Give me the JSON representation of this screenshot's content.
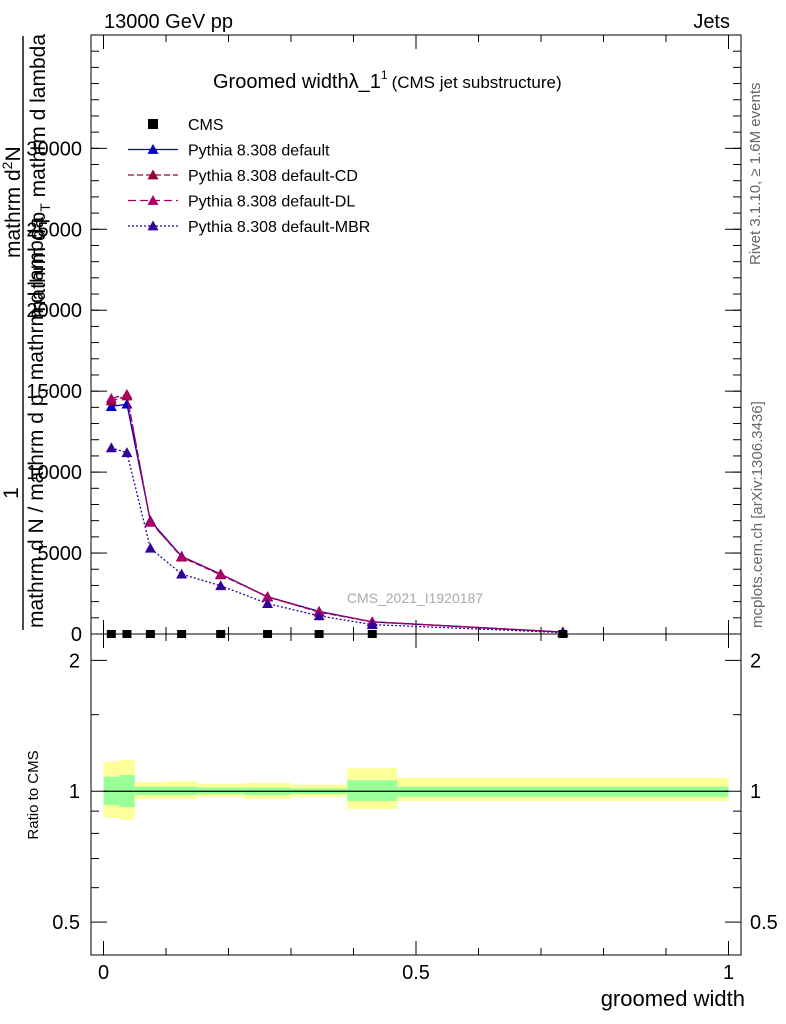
{
  "header": {
    "left": "13000 GeV pp",
    "right": "Jets"
  },
  "title": {
    "main": "Groomed widthλ_1",
    "superscript": "1",
    "sub": "(CMS jet substructure)"
  },
  "side_labels": {
    "rivet": "Rivet 3.1.10, ≥ 1.6M events",
    "mcplots": "mcplots.cern.ch [arXiv:1306.3436]"
  },
  "watermark": "CMS_2021_I1920187",
  "ylabel_top": {
    "one": "1",
    "line1": "mathrm d",
    "line1_sup": "2",
    "line1_end": "N",
    "line2": "mathrm d p",
    "line2_sub": "T",
    "line2_end": " mathrm d lambda",
    "denominator": "mathrm d N / mathrm d p",
    "denominator_sub": "T",
    "denominator_end": " mathrm d lambda"
  },
  "chart_data": {
    "type": "line",
    "xlabel": "groomed width",
    "ylabel_ratio": "Ratio to CMS",
    "xlim": [
      -0.02,
      1.02
    ],
    "ylim_main": [
      0,
      37000
    ],
    "ylim_ratio": [
      0.42,
      2.3
    ],
    "ratio_log": true,
    "x_ticks": [
      {
        "v": 0,
        "label": "0"
      },
      {
        "v": 0.5,
        "label": "0.5"
      },
      {
        "v": 1,
        "label": "1"
      }
    ],
    "y_ticks_main": [
      {
        "v": 0,
        "label": "0"
      },
      {
        "v": 5000,
        "label": "5000"
      },
      {
        "v": 10000,
        "label": "10000"
      },
      {
        "v": 15000,
        "label": "15000"
      },
      {
        "v": 20000,
        "label": "20000"
      },
      {
        "v": 25000,
        "label": "25000"
      },
      {
        "v": 30000,
        "label": "30000"
      }
    ],
    "y_ticks_ratio": [
      {
        "v": 0.5,
        "label": "0.5"
      },
      {
        "v": 1,
        "label": "1"
      },
      {
        "v": 2,
        "label": "2"
      }
    ],
    "legend": [
      "CMS",
      "Pythia 8.308 default",
      "Pythia 8.308 default-CD",
      "Pythia 8.308 default-DL",
      "Pythia 8.308 default-MBR"
    ],
    "bins": [
      {
        "lo": 0.0,
        "hi": 0.025,
        "x": 0.0125
      },
      {
        "lo": 0.025,
        "hi": 0.05,
        "x": 0.0375
      },
      {
        "lo": 0.05,
        "hi": 0.1,
        "x": 0.075
      },
      {
        "lo": 0.1,
        "hi": 0.15,
        "x": 0.125
      },
      {
        "lo": 0.15,
        "hi": 0.225,
        "x": 0.1875
      },
      {
        "lo": 0.225,
        "hi": 0.3,
        "x": 0.2625
      },
      {
        "lo": 0.3,
        "hi": 0.39,
        "x": 0.345
      },
      {
        "lo": 0.39,
        "hi": 0.47,
        "x": 0.43
      },
      {
        "lo": 0.47,
        "hi": 1.0,
        "x": 0.735
      }
    ],
    "cms": {
      "name": "CMS",
      "values": [
        0,
        0,
        0,
        0,
        0,
        0,
        0,
        0,
        0
      ],
      "band_inner": [
        [
          0.93,
          1.08
        ],
        [
          0.92,
          1.09
        ],
        [
          0.98,
          1.025
        ],
        [
          0.98,
          1.025
        ],
        [
          0.985,
          1.02
        ],
        [
          0.98,
          1.02
        ],
        [
          0.985,
          1.015
        ],
        [
          0.95,
          1.06
        ],
        [
          0.97,
          1.025
        ]
      ],
      "band_outer": [
        [
          0.87,
          1.17
        ],
        [
          0.86,
          1.18
        ],
        [
          0.96,
          1.05
        ],
        [
          0.96,
          1.055
        ],
        [
          0.97,
          1.04
        ],
        [
          0.96,
          1.045
        ],
        [
          0.97,
          1.035
        ],
        [
          0.91,
          1.13
        ],
        [
          0.95,
          1.075
        ]
      ]
    },
    "series": [
      {
        "name": "Pythia 8.308 default",
        "color": "#0000cc",
        "dash": "",
        "values": [
          14050,
          14200,
          7000,
          4800,
          3700,
          2300,
          1400,
          750,
          120
        ]
      },
      {
        "name": "Pythia 8.308 default-CD",
        "color": "#990033",
        "dash": "6,3",
        "values": [
          14400,
          14700,
          6950,
          4750,
          3650,
          2300,
          1350,
          750,
          120
        ]
      },
      {
        "name": "Pythia 8.308 default-DL",
        "color": "#aa0066",
        "dash": "8,4",
        "values": [
          14550,
          14800,
          6900,
          4800,
          3700,
          2280,
          1380,
          750,
          120
        ]
      },
      {
        "name": "Pythia 8.308 default-MBR",
        "color": "#330099",
        "dash": "2,2",
        "values": [
          11500,
          11200,
          5300,
          3700,
          2980,
          1880,
          1120,
          580,
          90
        ]
      }
    ]
  },
  "colors": {
    "band_outer": "#ffff99",
    "band_inner": "#99ff99"
  }
}
